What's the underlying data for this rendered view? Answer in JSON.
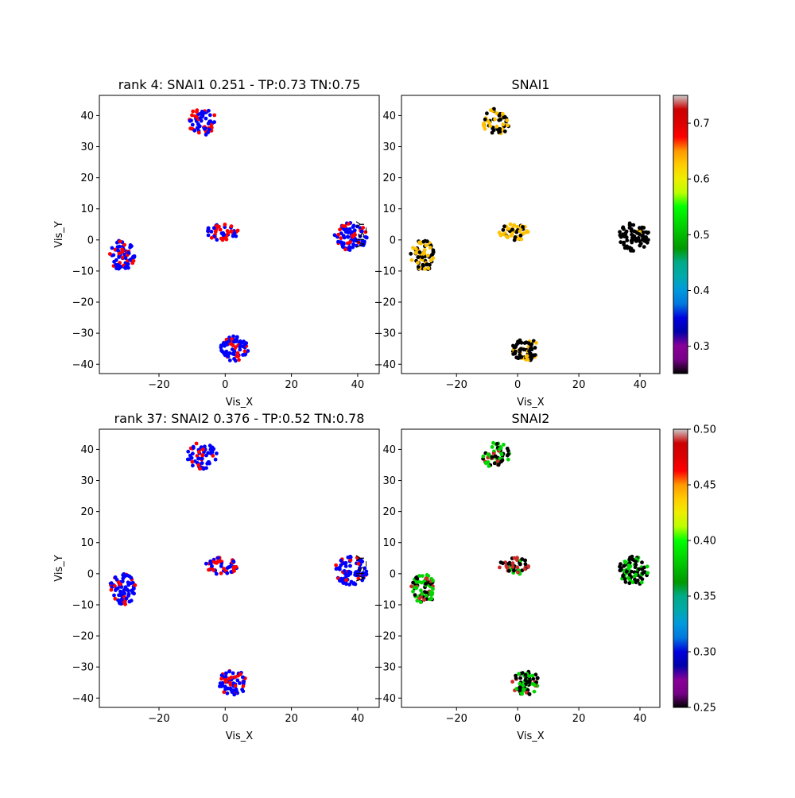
{
  "chart_data": [
    {
      "type": "scatter",
      "title": "rank 4: SNAI1 0.251 - TP:0.73 TN:0.75",
      "xlabel": "Vis_X",
      "ylabel": "Vis_Y",
      "xlim": [
        -38,
        46.5
      ],
      "ylim": [
        -43,
        46.5
      ],
      "xticks": [
        -20,
        0,
        20,
        40
      ],
      "yticks": [
        -40,
        -30,
        -20,
        -10,
        0,
        10,
        20,
        30,
        40
      ],
      "color_mode": "binary",
      "colors": {
        "positive": "#ff0000",
        "negative": "#0000ff"
      },
      "clusters": [
        {
          "center": [
            -7,
            38
          ],
          "radius": [
            4.5,
            4.3
          ],
          "fraction_positive": 0.45,
          "n": 60
        },
        {
          "center": [
            -31,
            -5
          ],
          "radius": [
            4.0,
            5.0
          ],
          "fraction_positive": 0.3,
          "n": 75
        },
        {
          "center": [
            -1,
            2.5
          ],
          "radius": [
            5.0,
            2.7
          ],
          "fraction_positive": 0.55,
          "n": 50
        },
        {
          "center": [
            38,
            1
          ],
          "radius": [
            5.0,
            4.6
          ],
          "fraction_positive": 0.25,
          "n": 80
        },
        {
          "center": [
            2.5,
            -35
          ],
          "radius": [
            4.5,
            4.0
          ],
          "fraction_positive": 0.3,
          "n": 70
        }
      ]
    },
    {
      "type": "scatter",
      "title": "SNAI1",
      "xlabel": "Vis_X",
      "ylabel": "Vis_Y",
      "xlim": [
        -38,
        46.5
      ],
      "ylim": [
        -43,
        46.5
      ],
      "xticks": [
        -20,
        0,
        20,
        40
      ],
      "yticks": [
        -40,
        -30,
        -20,
        -10,
        0,
        10,
        20,
        30,
        40
      ],
      "color_mode": "continuous",
      "colormap": "nipy_spectral",
      "colorbar": {
        "min": 0.251,
        "max": 0.75,
        "ticks": [
          0.3,
          0.4,
          0.5,
          0.6,
          0.7
        ]
      },
      "clusters": [
        {
          "center": [
            -7,
            38
          ],
          "radius": [
            4.5,
            4.3
          ],
          "values": [
            0.251,
            0.63
          ],
          "weights": [
            0.5,
            0.5
          ],
          "n": 60
        },
        {
          "center": [
            -31,
            -5
          ],
          "radius": [
            4.0,
            5.0
          ],
          "values": [
            0.251,
            0.63
          ],
          "weights": [
            0.55,
            0.45
          ],
          "n": 75
        },
        {
          "center": [
            -1,
            2.5
          ],
          "radius": [
            5.0,
            2.7
          ],
          "values": [
            0.251,
            0.63
          ],
          "weights": [
            0.3,
            0.7
          ],
          "n": 50
        },
        {
          "center": [
            38,
            1
          ],
          "radius": [
            5.0,
            4.6
          ],
          "values": [
            0.251,
            0.63
          ],
          "weights": [
            0.95,
            0.05
          ],
          "n": 80
        },
        {
          "center": [
            2.5,
            -35
          ],
          "radius": [
            4.5,
            4.0
          ],
          "values": [
            0.251,
            0.63
          ],
          "weights": [
            0.7,
            0.3
          ],
          "n": 70
        }
      ]
    },
    {
      "type": "scatter",
      "title": "rank 37: SNAI2 0.376 - TP:0.52 TN:0.78",
      "xlabel": "Vis_X",
      "ylabel": "Vis_Y",
      "xlim": [
        -38,
        46.5
      ],
      "ylim": [
        -43,
        46.5
      ],
      "xticks": [
        -20,
        0,
        20,
        40
      ],
      "yticks": [
        -40,
        -30,
        -20,
        -10,
        0,
        10,
        20,
        30,
        40
      ],
      "color_mode": "binary",
      "colors": {
        "positive": "#ff0000",
        "negative": "#0000ff"
      },
      "clusters": [
        {
          "center": [
            -7,
            38
          ],
          "radius": [
            4.5,
            4.3
          ],
          "fraction_positive": 0.3,
          "n": 60
        },
        {
          "center": [
            -31,
            -5
          ],
          "radius": [
            4.0,
            5.0
          ],
          "fraction_positive": 0.2,
          "n": 75
        },
        {
          "center": [
            -1,
            2.5
          ],
          "radius": [
            5.0,
            2.7
          ],
          "fraction_positive": 0.5,
          "n": 50
        },
        {
          "center": [
            38,
            1
          ],
          "radius": [
            5.0,
            4.6
          ],
          "fraction_positive": 0.15,
          "n": 80
        },
        {
          "center": [
            2.5,
            -35
          ],
          "radius": [
            4.5,
            4.0
          ],
          "fraction_positive": 0.35,
          "n": 70
        }
      ]
    },
    {
      "type": "scatter",
      "title": "SNAI2",
      "xlabel": "Vis_X",
      "ylabel": "Vis_Y",
      "xlim": [
        -38,
        46.5
      ],
      "ylim": [
        -43,
        46.5
      ],
      "xticks": [
        -20,
        0,
        20,
        40
      ],
      "yticks": [
        -40,
        -30,
        -20,
        -10,
        0,
        10,
        20,
        30,
        40
      ],
      "color_mode": "continuous",
      "colormap": "nipy_spectral",
      "colorbar": {
        "min": 0.25,
        "max": 0.5,
        "ticks": [
          0.25,
          0.3,
          0.35,
          0.4,
          0.45,
          0.5
        ]
      },
      "clusters": [
        {
          "center": [
            -7,
            38
          ],
          "radius": [
            4.5,
            4.3
          ],
          "values": [
            0.25,
            0.385,
            0.49
          ],
          "weights": [
            0.3,
            0.6,
            0.1
          ],
          "n": 60
        },
        {
          "center": [
            -31,
            -5
          ],
          "radius": [
            4.0,
            5.0
          ],
          "values": [
            0.25,
            0.385,
            0.49
          ],
          "weights": [
            0.4,
            0.5,
            0.1
          ],
          "n": 75
        },
        {
          "center": [
            -1,
            2.5
          ],
          "radius": [
            5.0,
            2.7
          ],
          "values": [
            0.25,
            0.385,
            0.49
          ],
          "weights": [
            0.45,
            0.25,
            0.3
          ],
          "n": 50
        },
        {
          "center": [
            38,
            1
          ],
          "radius": [
            5.0,
            4.6
          ],
          "values": [
            0.25,
            0.385,
            0.49
          ],
          "weights": [
            0.65,
            0.35,
            0.0
          ],
          "n": 80
        },
        {
          "center": [
            2.5,
            -35
          ],
          "radius": [
            4.5,
            4.0
          ],
          "values": [
            0.25,
            0.385,
            0.49
          ],
          "weights": [
            0.6,
            0.3,
            0.1
          ],
          "n": 70
        }
      ]
    }
  ]
}
